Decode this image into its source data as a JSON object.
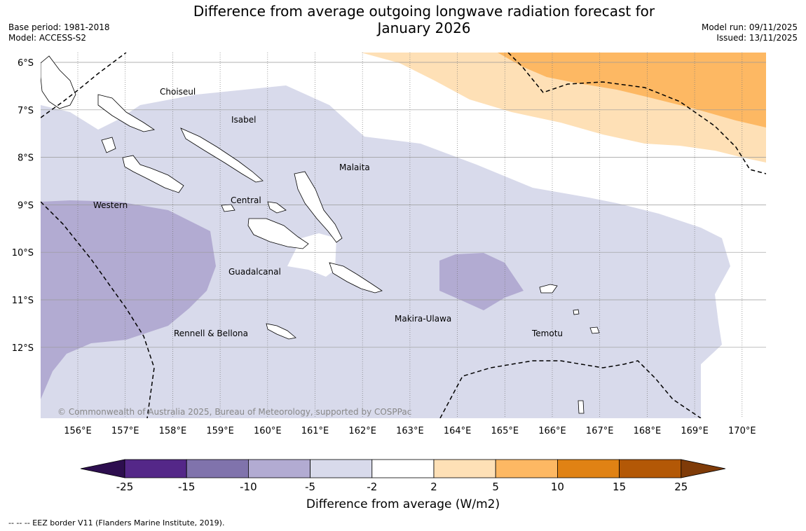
{
  "header": {
    "title_line1": "Difference from average outgoing longwave radiation forecast for",
    "title_line2": "January 2026",
    "base_period": "Base period: 1981-2018",
    "model": "Model: ACCESS-S2",
    "model_run": "Model run: 09/11/2025",
    "issued": "Issued: 13/11/2025"
  },
  "map": {
    "lon_labels": [
      "156°E",
      "157°E",
      "158°E",
      "159°E",
      "160°E",
      "161°E",
      "162°E",
      "163°E",
      "164°E",
      "165°E",
      "166°E",
      "167°E",
      "168°E",
      "169°E",
      "170°E"
    ],
    "lat_labels": [
      "6°S",
      "7°S",
      "8°S",
      "9°S",
      "10°S",
      "11°S",
      "12°S"
    ],
    "regions": [
      "Choiseul",
      "Isabel",
      "Malaita",
      "Western",
      "Central",
      "Guadalcanal",
      "Makira-Ulawa",
      "Rennell & Bellona",
      "Temotu"
    ],
    "copyright": "© Commonwealth of Australia 2025, Bureau of Meteorology, supported by COSPPac"
  },
  "colorbar": {
    "ticks": [
      "-25",
      "-15",
      "-10",
      "-5",
      "-2",
      "2",
      "5",
      "10",
      "15",
      "25"
    ],
    "colors": [
      "#2d0e4f",
      "#542788",
      "#8073ac",
      "#b2abd2",
      "#d8daeb",
      "#ffffff",
      "#fee0b6",
      "#fdb863",
      "#e08214",
      "#b35806",
      "#7f3b08"
    ],
    "title": "Difference from average (W/m2)"
  },
  "legend_note": "--  --  -- EEZ border V11 (Flanders Marine Institute, 2019)."
}
